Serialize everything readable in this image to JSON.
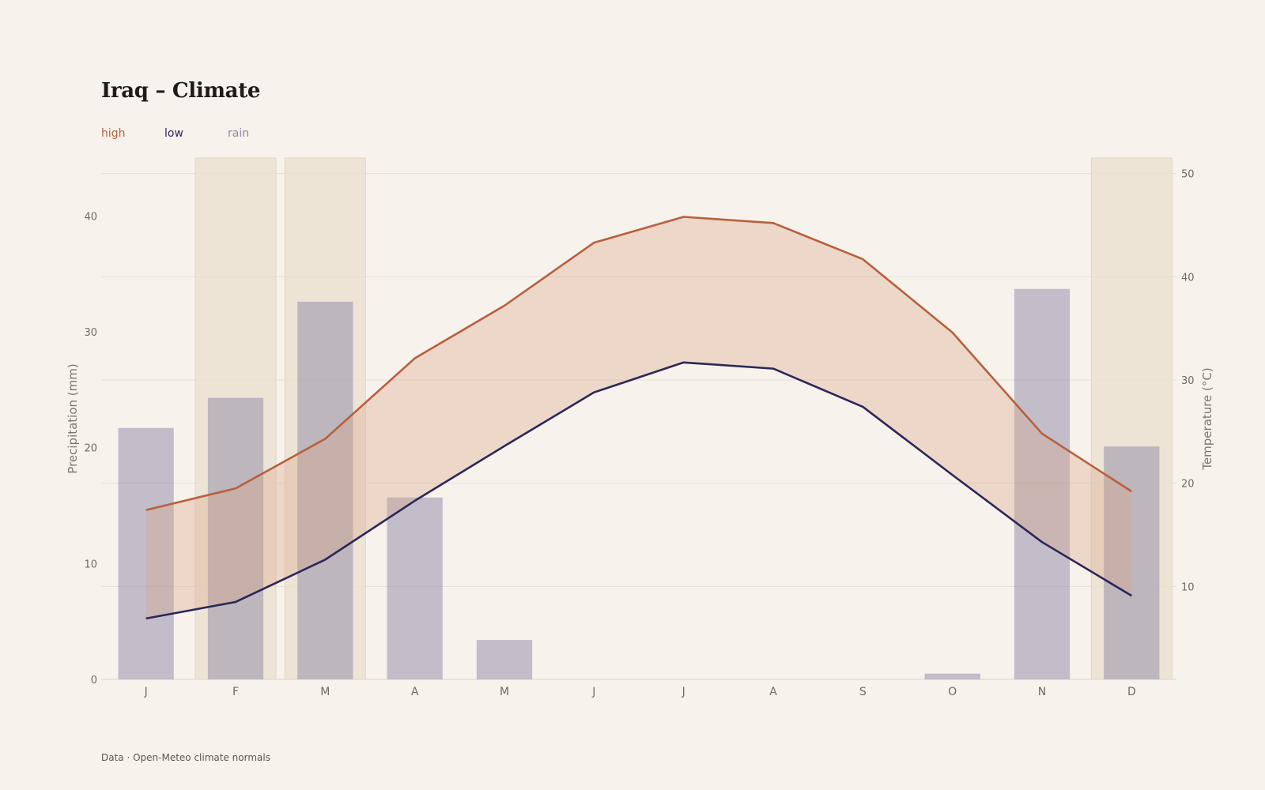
{
  "title": "Iraq – Climate",
  "legend": {
    "high": {
      "label": "high",
      "color": "#b8603d"
    },
    "low": {
      "label": "low",
      "color": "#2b2759"
    },
    "rain": {
      "label": "rain",
      "color": "#8d88a4"
    }
  },
  "footer": "Data · Open-Meteo climate normals",
  "chart_data": {
    "type": "bar+line",
    "categories": [
      "J",
      "F",
      "M",
      "A",
      "M",
      "J",
      "J",
      "A",
      "S",
      "O",
      "N",
      "D"
    ],
    "series": [
      {
        "name": "rain",
        "axis": "left",
        "type": "bar",
        "values": [
          21.7,
          24.3,
          32.6,
          15.7,
          3.4,
          0,
          0,
          0,
          0,
          0.5,
          33.7,
          20.1
        ]
      },
      {
        "name": "high",
        "axis": "right",
        "type": "line",
        "values": [
          17.4,
          19.5,
          24.3,
          32.1,
          37.2,
          43.3,
          45.8,
          45.2,
          41.7,
          34.6,
          24.8,
          19.2
        ]
      },
      {
        "name": "low",
        "axis": "right",
        "type": "line",
        "values": [
          6.9,
          8.5,
          12.6,
          18.3,
          23.6,
          28.8,
          31.7,
          31.1,
          27.4,
          20.8,
          14.3,
          9.1
        ]
      }
    ],
    "highlighted_months": [
      1,
      2,
      11
    ],
    "y_left": {
      "label": "Precipitation (mm)",
      "range": [
        0,
        45
      ],
      "ticks": [
        0,
        10,
        20,
        30,
        40
      ]
    },
    "y_right": {
      "label": "Temperature (°C)",
      "range": [
        1,
        51.5
      ],
      "ticks": [
        10,
        20,
        30,
        40,
        50
      ]
    },
    "grid": true,
    "legend_position": "top-left"
  }
}
